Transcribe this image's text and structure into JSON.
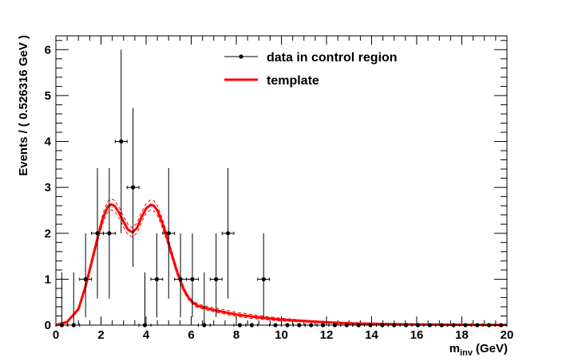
{
  "chart_data": {
    "type": "scatter",
    "xlabel": "m",
    "xlabel_sub": "inv",
    "xlabel_unit": "(GeV)",
    "ylabel": "Events / ( 0.526316 GeV )",
    "xlim": [
      0,
      20
    ],
    "ylim": [
      0,
      6.3
    ],
    "x_ticks": [
      0,
      2,
      4,
      6,
      8,
      10,
      12,
      14,
      16,
      18,
      20
    ],
    "y_ticks": [
      0,
      1,
      2,
      3,
      4,
      5,
      6
    ],
    "legend": {
      "placement": "top-center",
      "entries": [
        {
          "label": "data in control region",
          "style": "marker-errorbar",
          "color": "#000000"
        },
        {
          "label": "template",
          "style": "line",
          "color": "#ff0000"
        }
      ]
    },
    "series": [
      {
        "name": "data in control region",
        "kind": "points",
        "color": "#000000",
        "bin_half_width": 0.263158,
        "points": [
          {
            "x": 0.263,
            "y": 0,
            "up": 1.15,
            "down": 0
          },
          {
            "x": 0.789,
            "y": 0,
            "up": 1.15,
            "down": 0
          },
          {
            "x": 1.316,
            "y": 1,
            "up": 1.0,
            "down": 0.83
          },
          {
            "x": 1.842,
            "y": 2,
            "up": 1.42,
            "down": 1.42
          },
          {
            "x": 2.368,
            "y": 2,
            "up": 1.42,
            "down": 1.42
          },
          {
            "x": 2.895,
            "y": 4,
            "up": 2.0,
            "down": 2.0
          },
          {
            "x": 3.421,
            "y": 3,
            "up": 1.73,
            "down": 1.73
          },
          {
            "x": 3.947,
            "y": 0,
            "up": 1.15,
            "down": 0
          },
          {
            "x": 4.474,
            "y": 1,
            "up": 1.0,
            "down": 0.83
          },
          {
            "x": 5.0,
            "y": 2,
            "up": 1.42,
            "down": 1.42
          },
          {
            "x": 5.526,
            "y": 1,
            "up": 1.0,
            "down": 0.83
          },
          {
            "x": 6.053,
            "y": 1,
            "up": 1.0,
            "down": 0.83
          },
          {
            "x": 6.579,
            "y": 0,
            "up": 1.15,
            "down": 0
          },
          {
            "x": 7.105,
            "y": 1,
            "up": 1.0,
            "down": 0.83
          },
          {
            "x": 7.632,
            "y": 2,
            "up": 1.42,
            "down": 1.42
          },
          {
            "x": 8.158,
            "y": 0,
            "up": 0,
            "down": 0
          },
          {
            "x": 8.684,
            "y": 0,
            "up": 0,
            "down": 0
          },
          {
            "x": 9.211,
            "y": 1,
            "up": 1.0,
            "down": 0.83
          },
          {
            "x": 9.737,
            "y": 0,
            "up": 0,
            "down": 0
          },
          {
            "x": 10.263,
            "y": 0,
            "up": 0,
            "down": 0
          },
          {
            "x": 10.789,
            "y": 0,
            "up": 0,
            "down": 0
          },
          {
            "x": 11.316,
            "y": 0,
            "up": 0,
            "down": 0
          },
          {
            "x": 11.842,
            "y": 0,
            "up": 0,
            "down": 0
          },
          {
            "x": 12.368,
            "y": 0,
            "up": 0,
            "down": 0
          },
          {
            "x": 12.895,
            "y": 0,
            "up": 0,
            "down": 0
          },
          {
            "x": 13.421,
            "y": 0,
            "up": 0,
            "down": 0
          },
          {
            "x": 13.947,
            "y": 0,
            "up": 0,
            "down": 0
          },
          {
            "x": 14.474,
            "y": 0,
            "up": 0,
            "down": 0
          },
          {
            "x": 15.0,
            "y": 0,
            "up": 0,
            "down": 0
          },
          {
            "x": 15.526,
            "y": 0,
            "up": 0,
            "down": 0
          },
          {
            "x": 16.053,
            "y": 0,
            "up": 0,
            "down": 0
          },
          {
            "x": 16.579,
            "y": 0,
            "up": 0,
            "down": 0
          },
          {
            "x": 17.105,
            "y": 0,
            "up": 0,
            "down": 0
          },
          {
            "x": 17.632,
            "y": 0,
            "up": 0,
            "down": 0
          },
          {
            "x": 18.158,
            "y": 0,
            "up": 0,
            "down": 0
          },
          {
            "x": 18.684,
            "y": 0,
            "up": 0,
            "down": 0
          },
          {
            "x": 19.211,
            "y": 0,
            "up": 0,
            "down": 0
          },
          {
            "x": 19.737,
            "y": 0,
            "up": 0,
            "down": 0
          }
        ]
      },
      {
        "name": "template",
        "kind": "line",
        "color": "#ff0000",
        "x": [
          0,
          0.5,
          1.0,
          1.3,
          1.6,
          1.9,
          2.1,
          2.3,
          2.45,
          2.6,
          2.8,
          3.0,
          3.2,
          3.4,
          3.6,
          3.8,
          4.0,
          4.2,
          4.35,
          4.5,
          4.7,
          4.9,
          5.1,
          5.3,
          5.5,
          5.7,
          5.9,
          6.1,
          6.3,
          6.6,
          7.0,
          7.5,
          8.0,
          9.0,
          10.0,
          11.0,
          12.0,
          13.0,
          14.0,
          15.0,
          16.0,
          17.0,
          18.0,
          19.0,
          20.0
        ],
        "y": [
          0,
          0.07,
          0.35,
          0.82,
          1.4,
          2.0,
          2.35,
          2.58,
          2.63,
          2.6,
          2.45,
          2.25,
          2.08,
          2.02,
          2.12,
          2.35,
          2.54,
          2.62,
          2.6,
          2.5,
          2.25,
          1.95,
          1.6,
          1.28,
          0.98,
          0.75,
          0.58,
          0.48,
          0.42,
          0.38,
          0.33,
          0.28,
          0.23,
          0.17,
          0.12,
          0.09,
          0.06,
          0.04,
          0.03,
          0.02,
          0.015,
          0.01,
          0.008,
          0.005,
          0.004
        ]
      },
      {
        "kind": "line",
        "style": "dashed",
        "color": "#ff0000",
        "x": [
          0,
          0.5,
          1.0,
          1.3,
          1.6,
          1.9,
          2.1,
          2.3,
          2.45,
          2.6,
          2.8,
          3.0,
          3.2,
          3.4,
          3.6,
          3.8,
          4.0,
          4.2,
          4.35,
          4.5,
          4.7,
          4.9,
          5.1,
          5.3,
          5.5,
          5.7,
          5.9,
          6.1,
          6.3,
          6.6,
          7.0,
          7.5,
          8.0,
          9.0,
          10.0,
          11.0,
          12.0,
          13.0,
          14.0,
          15.0,
          16.0,
          17.0,
          18.0,
          19.0,
          20.0
        ],
        "y": [
          0,
          0.08,
          0.38,
          0.88,
          1.48,
          2.08,
          2.45,
          2.7,
          2.75,
          2.72,
          2.57,
          2.36,
          2.19,
          2.12,
          2.23,
          2.46,
          2.65,
          2.73,
          2.71,
          2.61,
          2.35,
          2.04,
          1.68,
          1.35,
          1.04,
          0.8,
          0.62,
          0.52,
          0.46,
          0.42,
          0.38,
          0.33,
          0.28,
          0.21,
          0.15,
          0.11,
          0.08,
          0.055,
          0.04,
          0.028,
          0.02,
          0.014,
          0.01,
          0.007,
          0.005
        ]
      },
      {
        "kind": "line",
        "style": "dashed",
        "color": "#ff0000",
        "x": [
          0,
          0.5,
          1.0,
          1.3,
          1.6,
          1.9,
          2.1,
          2.3,
          2.45,
          2.6,
          2.8,
          3.0,
          3.2,
          3.4,
          3.6,
          3.8,
          4.0,
          4.2,
          4.35,
          4.5,
          4.7,
          4.9,
          5.1,
          5.3,
          5.5,
          5.7,
          5.9,
          6.1,
          6.3,
          6.6,
          7.0,
          7.5,
          8.0,
          9.0,
          10.0,
          11.0,
          12.0,
          13.0,
          14.0,
          15.0,
          16.0,
          17.0,
          18.0,
          19.0,
          20.0
        ],
        "y": [
          0,
          0.06,
          0.32,
          0.76,
          1.32,
          1.92,
          2.25,
          2.46,
          2.51,
          2.48,
          2.33,
          2.14,
          1.97,
          1.92,
          2.01,
          2.24,
          2.43,
          2.51,
          2.49,
          2.39,
          2.15,
          1.86,
          1.52,
          1.21,
          0.92,
          0.7,
          0.54,
          0.44,
          0.38,
          0.34,
          0.29,
          0.24,
          0.19,
          0.13,
          0.09,
          0.07,
          0.045,
          0.03,
          0.02,
          0.013,
          0.01,
          0.007,
          0.005,
          0.003,
          0.002
        ]
      }
    ]
  }
}
